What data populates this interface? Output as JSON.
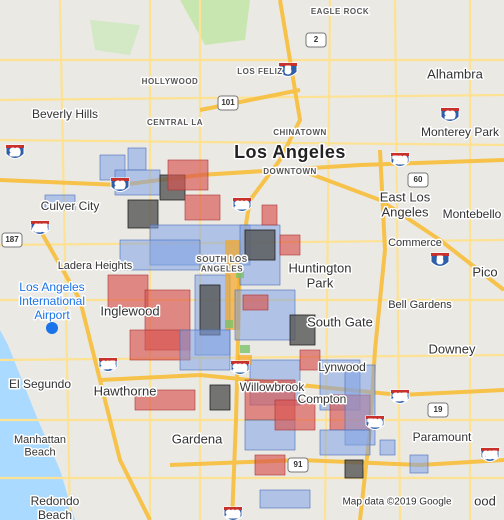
{
  "map": {
    "labels": [
      {
        "lines": [
          "EAGLE ROCK"
        ]
      },
      {
        "lines": [
          "HOLLYWOOD"
        ]
      },
      {
        "lines": [
          "LOS FELIZ"
        ]
      },
      {
        "lines": [
          "Alhambra"
        ]
      },
      {
        "lines": [
          "Beverly Hills"
        ]
      },
      {
        "lines": [
          "CENTRAL LA"
        ]
      },
      {
        "lines": [
          "CHINATOWN"
        ]
      },
      {
        "lines": [
          "Monterey Park"
        ]
      },
      {
        "lines": [
          "Los Angeles"
        ]
      },
      {
        "lines": [
          "DOWNTOWN"
        ]
      },
      {
        "lines": [
          "Culver City"
        ]
      },
      {
        "lines": [
          "East Los",
          "Angeles"
        ]
      },
      {
        "lines": [
          "Montebello"
        ]
      },
      {
        "lines": [
          "Commerce"
        ]
      },
      {
        "lines": [
          "Ladera Heights"
        ]
      },
      {
        "lines": [
          "SOUTH LOS",
          "ANGELES"
        ]
      },
      {
        "lines": [
          "Huntington",
          "Park"
        ]
      },
      {
        "lines": [
          "Pico"
        ]
      },
      {
        "lines": [
          "Los Angeles",
          "International",
          "Airport"
        ]
      },
      {
        "lines": [
          "Bell Gardens"
        ]
      },
      {
        "lines": [
          "Inglewood"
        ]
      },
      {
        "lines": [
          "South Gate"
        ]
      },
      {
        "lines": [
          "Downey"
        ]
      },
      {
        "lines": [
          "Lynwood"
        ]
      },
      {
        "lines": [
          "El Segundo"
        ]
      },
      {
        "lines": [
          "Hawthorne"
        ]
      },
      {
        "lines": [
          "Willowbrook"
        ]
      },
      {
        "lines": [
          "Compton"
        ]
      },
      {
        "lines": [
          "Paramount"
        ]
      },
      {
        "lines": [
          "Manhattan",
          "Beach"
        ]
      },
      {
        "lines": [
          "Gardena"
        ]
      },
      {
        "lines": [
          "Redondo",
          "Beach"
        ]
      },
      {
        "lines": [
          "ood"
        ]
      }
    ],
    "shields": [
      "2",
      "5",
      "101",
      "10",
      "10",
      "10",
      "710",
      "60",
      "110",
      "405",
      "187",
      "5",
      "105",
      "110",
      "105",
      "19",
      "710",
      "605",
      "91",
      "110"
    ],
    "attribution": "Map data ©2019 Google"
  }
}
